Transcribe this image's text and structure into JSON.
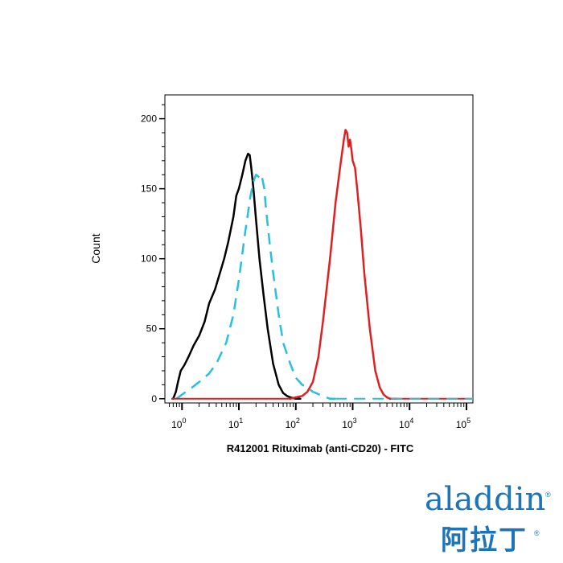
{
  "chart_data": {
    "type": "line",
    "xlabel": "R412001 Rituximab (anti-CD20) - FITC",
    "ylabel": "Count",
    "x_scale": "log",
    "xlim": [
      0.5,
      130000
    ],
    "ylim": [
      -3,
      217
    ],
    "x_ticks": [
      {
        "value": 1,
        "base": "10",
        "exp": "0"
      },
      {
        "value": 10,
        "base": "10",
        "exp": "1"
      },
      {
        "value": 100,
        "base": "10",
        "exp": "2"
      },
      {
        "value": 1000,
        "base": "10",
        "exp": "3"
      },
      {
        "value": 10000,
        "base": "10",
        "exp": "4"
      },
      {
        "value": 100000,
        "base": "10",
        "exp": "5"
      }
    ],
    "y_ticks": [
      0,
      50,
      100,
      150,
      200
    ],
    "grid": false,
    "series": [
      {
        "color": "#000000",
        "style": "solid",
        "x": [
          0.7,
          0.78,
          0.85,
          0.95,
          1.1,
          1.3,
          1.6,
          2.0,
          2.5,
          3.0,
          3.8,
          4.5,
          5.5,
          6.5,
          8.0,
          9.0,
          10,
          11.5,
          13,
          14.5,
          15.5,
          16.5,
          18,
          20,
          23,
          27,
          32,
          40,
          50,
          60,
          70,
          80,
          100,
          120
        ],
        "y": [
          0,
          5,
          12,
          20,
          24,
          30,
          38,
          45,
          55,
          68,
          78,
          88,
          100,
          112,
          130,
          145,
          150,
          160,
          170,
          175,
          174,
          165,
          150,
          128,
          100,
          75,
          50,
          25,
          10,
          4,
          2,
          1,
          0,
          0
        ]
      },
      {
        "color": "#29bfe0",
        "style": "dashed",
        "x": [
          0.8,
          1.0,
          1.5,
          2.0,
          3.0,
          4.0,
          6.0,
          8.0,
          10,
          13,
          16,
          18,
          20,
          23,
          25,
          28,
          30,
          35,
          40,
          50,
          60,
          80,
          100,
          130,
          160,
          200,
          300,
          400,
          500
        ],
        "y": [
          0,
          3,
          8,
          12,
          18,
          25,
          40,
          60,
          85,
          120,
          145,
          155,
          160,
          158,
          160,
          150,
          135,
          110,
          90,
          60,
          40,
          25,
          15,
          10,
          8,
          5,
          2,
          0,
          0
        ]
      },
      {
        "color": "#e02020",
        "style": "solid",
        "x": [
          80,
          100,
          130,
          160,
          200,
          250,
          300,
          400,
          500,
          600,
          700,
          750,
          800,
          850,
          900,
          950,
          1000,
          1100,
          1200,
          1400,
          1600,
          2000,
          2500,
          3000,
          3500,
          4000,
          4500,
          5000,
          6000
        ],
        "y": [
          0,
          1,
          2,
          5,
          12,
          30,
          55,
          100,
          140,
          165,
          185,
          192,
          190,
          180,
          185,
          178,
          170,
          165,
          150,
          120,
          90,
          50,
          20,
          8,
          3,
          1,
          0,
          0,
          0
        ]
      }
    ]
  },
  "logo": {
    "latin": "aladdin",
    "registered": "®",
    "cjk": "阿拉丁",
    "color": "#1e74b8",
    "accent": "#c9a227"
  }
}
